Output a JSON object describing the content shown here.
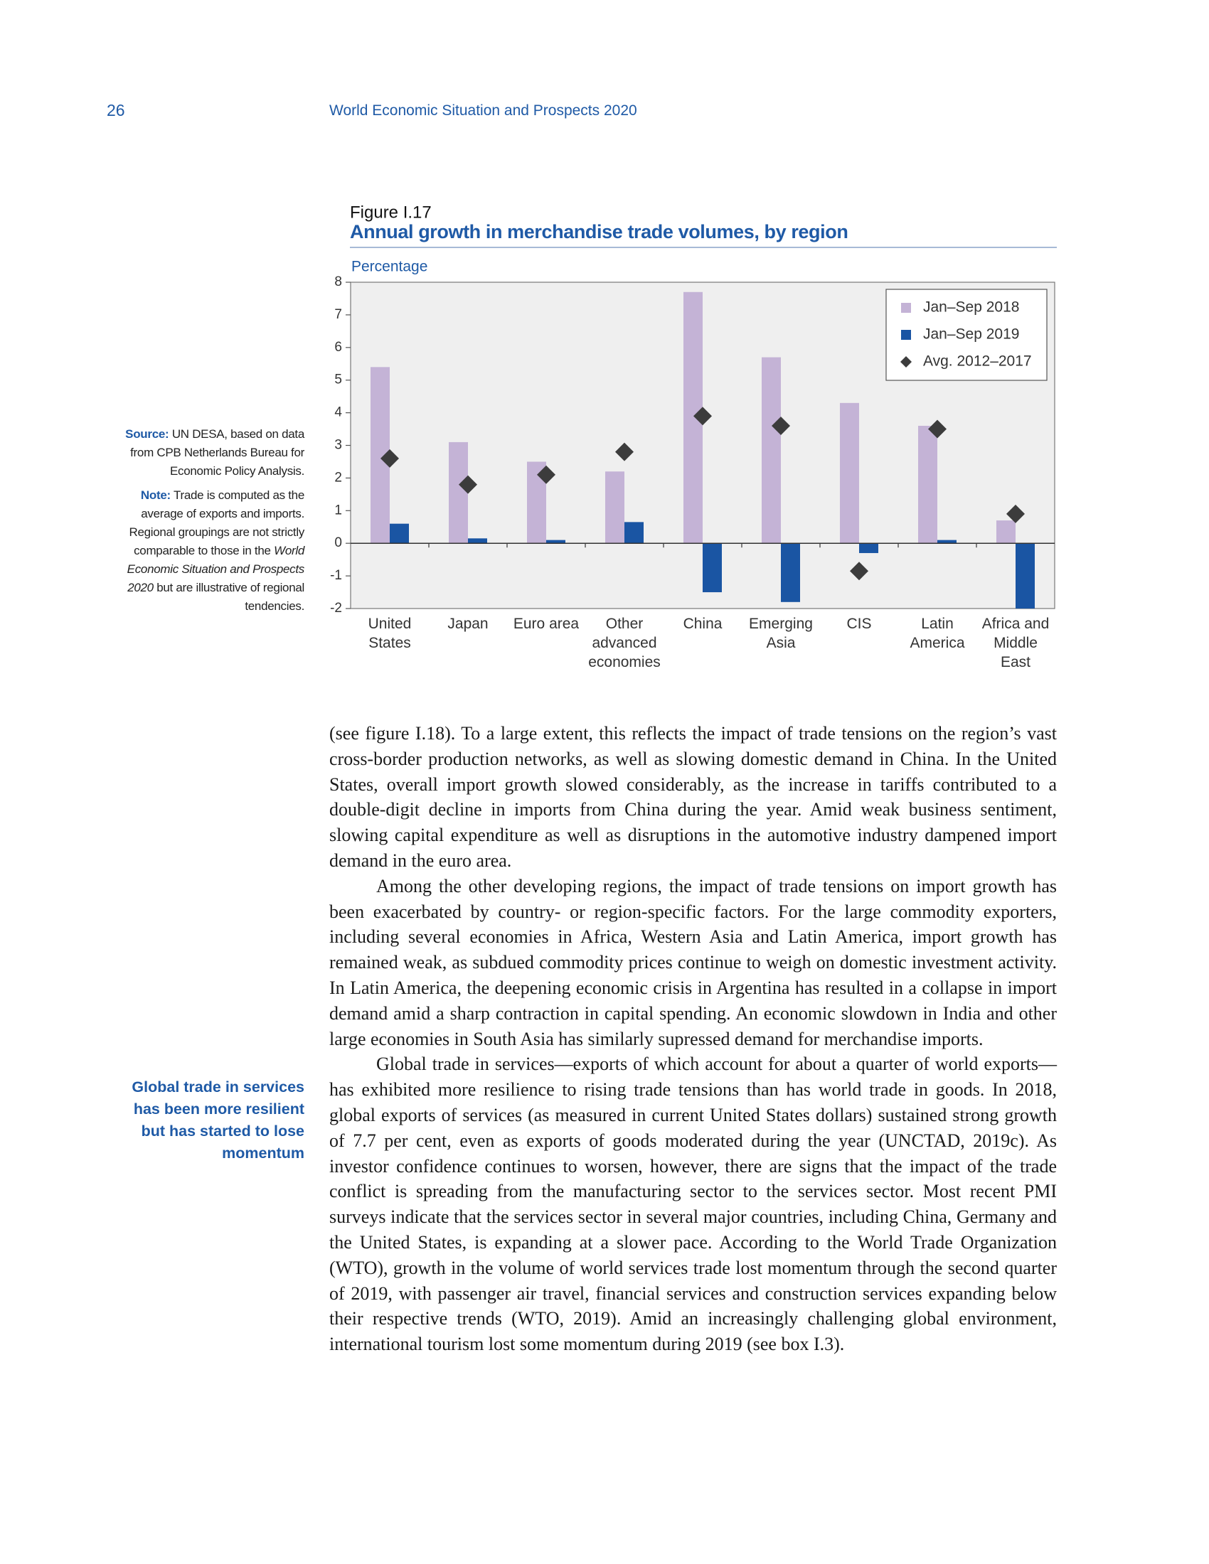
{
  "header": {
    "page_number": "26",
    "running_title": "World Economic Situation and Prospects 2020"
  },
  "sidebar": {
    "source_label": "Source:",
    "source_text": "UN DESA, based on data from CPB Netherlands Bureau for Economic Policy Analysis.",
    "note_label": "Note:",
    "note_text_1": "Trade is computed as the average of exports and imports. Regional groupings are not strictly comparable to those in the",
    "note_italic": "World Economic Situation and Prospects 2020",
    "note_text_2": "but are illustrative of regional tendencies.",
    "margin_heading": "Global trade in services has been more resilient but has started to lose momentum"
  },
  "chart_data": {
    "type": "bar",
    "figure_label": "Figure I.17",
    "title": "Annual growth in merchandise trade volumes, by region",
    "y_label": "Percentage",
    "categories": [
      "United\nStates",
      "Japan",
      "Euro area",
      "Other\nadvanced\neconomies",
      "China",
      "Emerging\nAsia",
      "CIS",
      "Latin\nAmerica",
      "Africa and\nMiddle\nEast"
    ],
    "series": [
      {
        "name": "Jan–Sep 2018",
        "color": "#c4b3d6",
        "marker": "bar",
        "values": [
          5.4,
          3.1,
          2.5,
          2.2,
          7.7,
          5.7,
          4.3,
          3.6,
          0.7
        ]
      },
      {
        "name": "Jan–Sep 2019",
        "color": "#1a55a3",
        "marker": "bar",
        "values": [
          0.6,
          0.15,
          0.1,
          0.65,
          -1.5,
          -1.8,
          -0.3,
          0.1,
          -2.0
        ]
      },
      {
        "name": "Avg. 2012–2017",
        "color": "#3c3c3c",
        "marker": "diamond",
        "values": [
          2.6,
          1.8,
          2.1,
          2.8,
          3.9,
          3.6,
          -0.85,
          3.5,
          0.9
        ]
      }
    ],
    "ylim": [
      -2,
      8
    ],
    "yticks": [
      -2,
      -1,
      0,
      1,
      2,
      3,
      4,
      5,
      6,
      7,
      8
    ],
    "legend": "upper right"
  },
  "body": {
    "paragraphs": [
      "(see figure I.18). To a large extent, this reflects the impact of trade tensions on the region’s vast cross-border production networks, as well as slowing domestic demand in China. In the United States, overall import growth slowed considerably, as the increase in tariffs contributed to a double-digit decline in imports from China during the year. Amid weak business sentiment, slowing capital expenditure as well as disruptions in the automotive industry dampened import demand in the euro area.",
      "Among the other developing regions, the impact of trade tensions on import growth has been exacerbated by country- or region-specific factors. For the large commodity exporters, including several economies in Africa, Western Asia and Latin America, import growth has remained weak, as subdued commodity prices continue to weigh on domestic investment activity. In Latin America, the deepening economic crisis in Argentina has resulted in a collapse in import demand amid a sharp contraction in capital spending. An economic slowdown in India and other large economies in South Asia has similarly supressed demand for merchandise imports.",
      "Global trade in services—exports of which account for about a quarter of world exports—has exhibited more resilience to rising trade tensions than has world trade in goods. In 2018, global exports of services (as measured in current United States dollars) sustained strong growth of 7.7 per cent, even as exports of goods moderated during the year (UNCTAD, 2019c). As investor confidence continues to worsen, however, there are signs that the impact of the trade conflict is spreading from the manufacturing sector to the services sector. Most recent PMI surveys indicate that the services sector in several major countries, including China, Germany and the United States, is expanding at a slower pace. According to the World Trade Organization (WTO), growth in the volume of world services trade lost momentum through the second quarter of 2019, with passenger air travel, financial services and construction services expanding below their respective trends (WTO, 2019). Amid an increasingly challenging global environment, international tourism lost some momentum during 2019 (see box I.3)."
    ]
  }
}
